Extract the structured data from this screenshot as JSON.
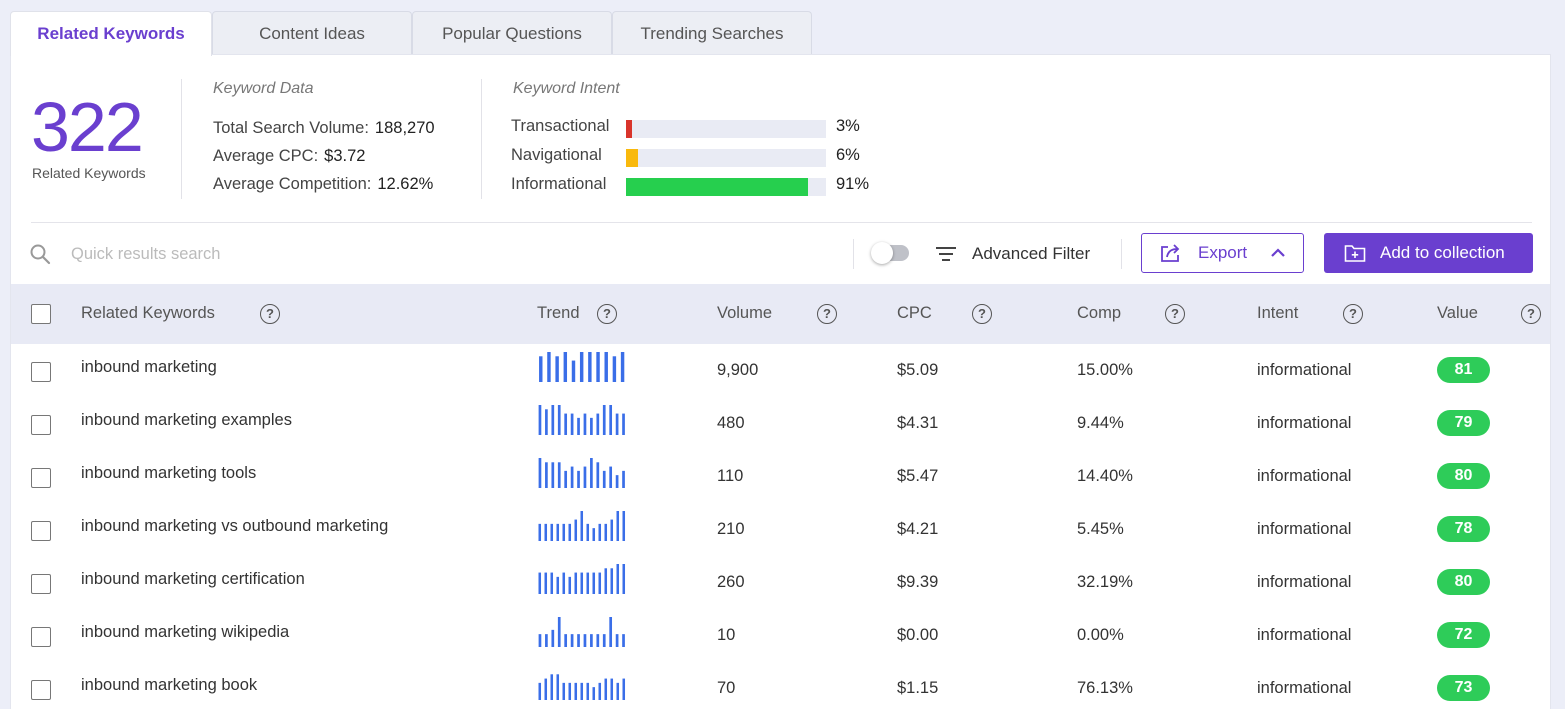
{
  "tabs": [
    {
      "label": "Related Keywords",
      "active": true
    },
    {
      "label": "Content Ideas",
      "active": false
    },
    {
      "label": "Popular Questions",
      "active": false
    },
    {
      "label": "Trending Searches",
      "active": false
    }
  ],
  "summary": {
    "count": "322",
    "count_label": "Related Keywords",
    "keyword_data": {
      "title": "Keyword Data",
      "total_search_volume_label": "Total Search Volume:",
      "total_search_volume": "188,270",
      "avg_cpc_label": "Average CPC:",
      "avg_cpc": "$3.72",
      "avg_competition_label": "Average Competition:",
      "avg_competition": "12.62%"
    },
    "keyword_intent": {
      "title": "Keyword Intent",
      "items": [
        {
          "label": "Transactional",
          "pct": "3%",
          "value": 3,
          "color": "#d9342b"
        },
        {
          "label": "Navigational",
          "pct": "6%",
          "value": 6,
          "color": "#f9b90d"
        },
        {
          "label": "Informational",
          "pct": "91%",
          "value": 91,
          "color": "#26cf4e"
        }
      ]
    }
  },
  "toolbar": {
    "search_placeholder": "Quick results search",
    "advanced_filter_label": "Advanced Filter",
    "export_label": "Export",
    "add_collection_label": "Add to collection"
  },
  "table": {
    "headers": {
      "keyword": "Related Keywords",
      "trend": "Trend",
      "volume": "Volume",
      "cpc": "CPC",
      "comp": "Comp",
      "intent": "Intent",
      "value": "Value",
      "help": "?"
    },
    "rows": [
      {
        "keyword": "inbound marketing",
        "trend": [
          6,
          7,
          6,
          7,
          5,
          7,
          7,
          7,
          7,
          6,
          7
        ],
        "volume": "9,900",
        "cpc": "$5.09",
        "comp": "15.00%",
        "intent": "informational",
        "value": "81"
      },
      {
        "keyword": "inbound marketing examples",
        "trend": [
          7,
          6,
          7,
          7,
          5,
          5,
          4,
          5,
          4,
          5,
          7,
          7,
          5,
          5
        ],
        "volume": "480",
        "cpc": "$4.31",
        "comp": "9.44%",
        "intent": "informational",
        "value": "79"
      },
      {
        "keyword": "inbound marketing tools",
        "trend": [
          7,
          6,
          6,
          6,
          4,
          5,
          4,
          5,
          7,
          6,
          4,
          5,
          3,
          4
        ],
        "volume": "110",
        "cpc": "$5.47",
        "comp": "14.40%",
        "intent": "informational",
        "value": "80"
      },
      {
        "keyword": "inbound marketing vs outbound marketing",
        "trend": [
          4,
          4,
          4,
          4,
          4,
          4,
          5,
          7,
          4,
          3,
          4,
          4,
          5,
          7,
          7
        ],
        "volume": "210",
        "cpc": "$4.21",
        "comp": "5.45%",
        "intent": "informational",
        "value": "78"
      },
      {
        "keyword": "inbound marketing certification",
        "trend": [
          5,
          5,
          5,
          4,
          5,
          4,
          5,
          5,
          5,
          5,
          5,
          6,
          6,
          7,
          7
        ],
        "volume": "260",
        "cpc": "$9.39",
        "comp": "32.19%",
        "intent": "informational",
        "value": "80"
      },
      {
        "keyword": "inbound marketing wikipedia",
        "trend": [
          3,
          3,
          4,
          7,
          3,
          3,
          3,
          3,
          3,
          3,
          3,
          7,
          3,
          3
        ],
        "volume": "10",
        "cpc": "$0.00",
        "comp": "0.00%",
        "intent": "informational",
        "value": "72"
      },
      {
        "keyword": "inbound marketing book",
        "trend": [
          4,
          5,
          6,
          6,
          4,
          4,
          4,
          4,
          4,
          3,
          4,
          5,
          5,
          4,
          5
        ],
        "volume": "70",
        "cpc": "$1.15",
        "comp": "76.13%",
        "intent": "informational",
        "value": "73"
      }
    ]
  }
}
